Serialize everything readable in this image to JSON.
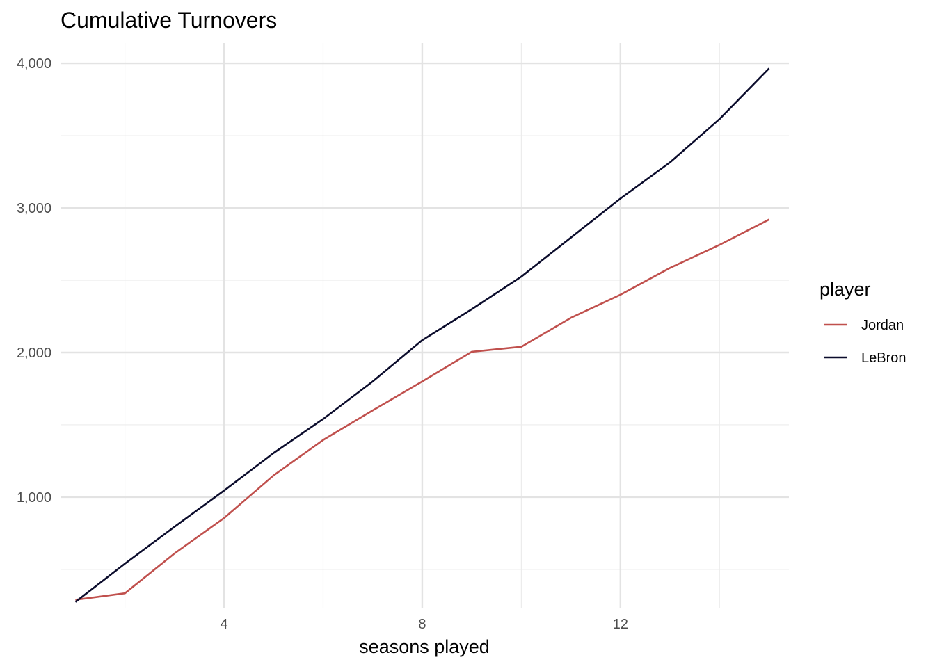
{
  "chart_data": {
    "type": "line",
    "title": "Cumulative Turnovers",
    "xlabel": "seasons played",
    "ylabel": "",
    "xlim": [
      0.7,
      15.4
    ],
    "ylim": [
      235,
      4140
    ],
    "x_major_ticks": [
      4,
      8,
      12
    ],
    "x_minor_ticks": [
      2,
      6,
      10,
      14
    ],
    "y_major_ticks": [
      1000,
      2000,
      3000,
      4000
    ],
    "y_minor_ticks": [
      500,
      1500,
      2500,
      3500
    ],
    "x_tick_labels": [
      "4",
      "8",
      "12"
    ],
    "y_tick_labels": [
      "1,000",
      "2,000",
      "3,000",
      "4,000"
    ],
    "grid": true,
    "legend": {
      "title": "player",
      "placement": "right"
    },
    "series": [
      {
        "name": "Jordan",
        "color": "#c0504d",
        "x": [
          1,
          2,
          3,
          4,
          5,
          6,
          7,
          8,
          9,
          10,
          11,
          12,
          13,
          14,
          15
        ],
        "values": [
          290,
          335,
          610,
          855,
          1150,
          1395,
          1600,
          1800,
          2005,
          2040,
          2240,
          2400,
          2585,
          2745,
          2920
        ]
      },
      {
        "name": "LeBron",
        "color": "#0b0c2c",
        "x": [
          1,
          2,
          3,
          4,
          5,
          6,
          7,
          8,
          9,
          10,
          11,
          12,
          13,
          14,
          15
        ],
        "values": [
          275,
          540,
          795,
          1045,
          1305,
          1540,
          1800,
          2085,
          2300,
          2525,
          2795,
          3065,
          3315,
          3615,
          3965
        ]
      }
    ]
  }
}
